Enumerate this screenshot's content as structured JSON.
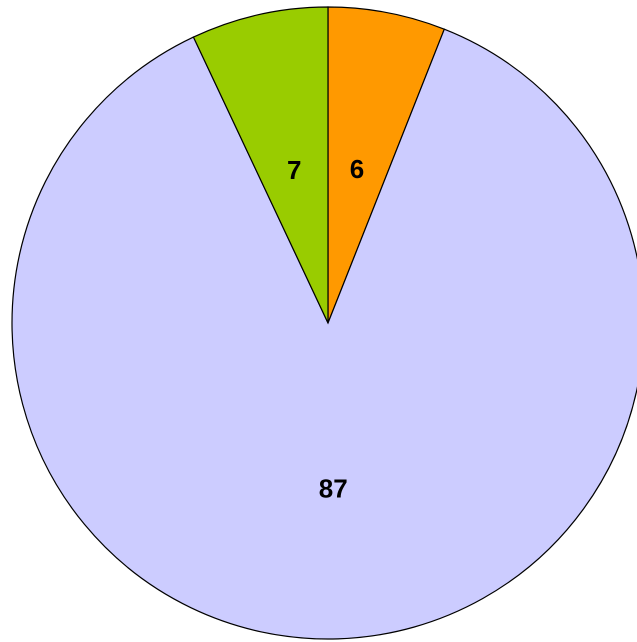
{
  "chart_data": {
    "type": "pie",
    "categories": [
      null,
      null,
      null
    ],
    "values": [
      6,
      87,
      7
    ],
    "colors": [
      "#ff9900",
      "#ccccff",
      "#99cc00"
    ],
    "start_angle": 0,
    "direction": "clockwise"
  }
}
